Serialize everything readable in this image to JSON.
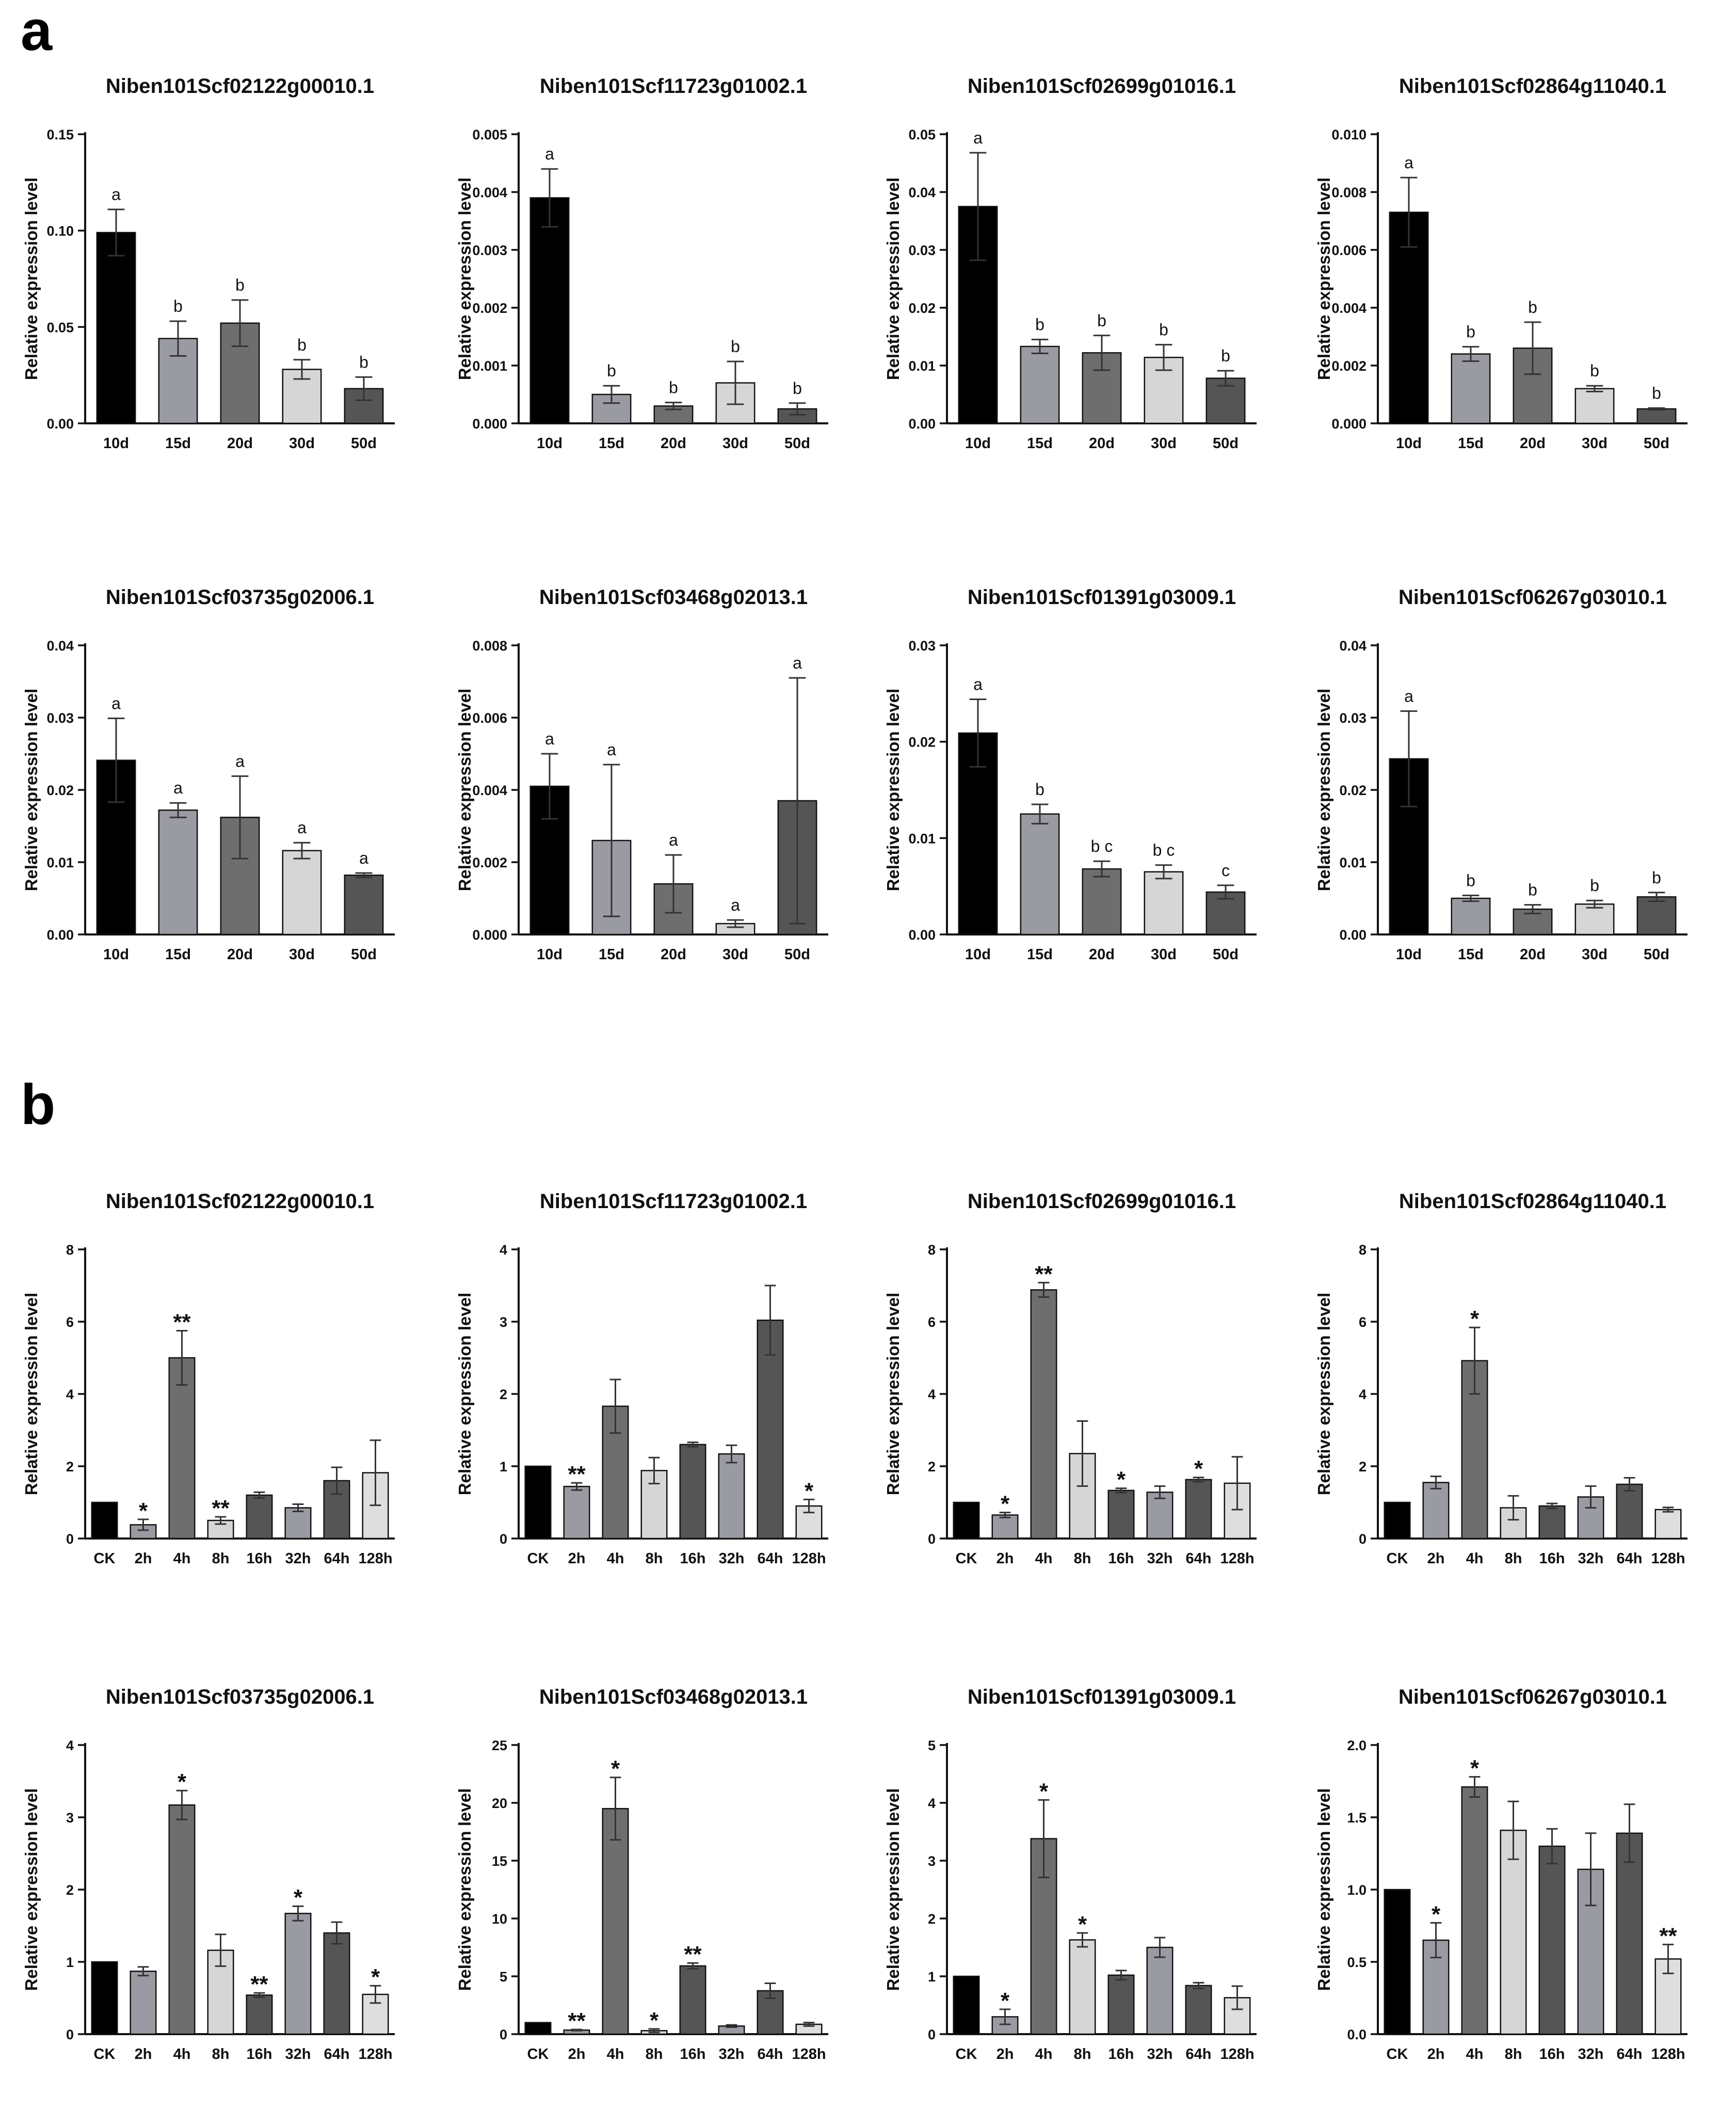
{
  "panels": [
    {
      "label": "a"
    },
    {
      "label": "b"
    }
  ],
  "chart_data": [
    {
      "type": "bar",
      "panel": "a",
      "title": "Niben101Scf02122g00010.1",
      "ylabel": "Relative expression level",
      "ylim": [
        0,
        0.15
      ],
      "yticks": [
        "0.00",
        "0.05",
        "0.10",
        "0.15"
      ],
      "categories": [
        "10d",
        "15d",
        "20d",
        "30d",
        "50d"
      ],
      "values": [
        0.099,
        0.044,
        0.052,
        0.028,
        0.018
      ],
      "errors": [
        0.012,
        0.009,
        0.012,
        0.005,
        0.006
      ],
      "annotations": [
        "a",
        "b",
        "b",
        "b",
        "b"
      ],
      "colors": [
        "#000000",
        "#9a9aa2",
        "#6e6e6e",
        "#d6d6d6",
        "#555555"
      ]
    },
    {
      "type": "bar",
      "panel": "a",
      "title": "Niben101Scf11723g01002.1",
      "ylabel": "Relative expression level",
      "ylim": [
        0,
        0.005
      ],
      "yticks": [
        "0.000",
        "0.001",
        "0.002",
        "0.003",
        "0.004",
        "0.005"
      ],
      "categories": [
        "10d",
        "15d",
        "20d",
        "30d",
        "50d"
      ],
      "values": [
        0.0039,
        0.0005,
        0.0003,
        0.0007,
        0.00025
      ],
      "errors": [
        0.0005,
        0.00015,
        6e-05,
        0.00037,
        0.0001
      ],
      "annotations": [
        "a",
        "b",
        "b",
        "b",
        "b"
      ],
      "colors": [
        "#000000",
        "#9a9aa2",
        "#6e6e6e",
        "#d6d6d6",
        "#555555"
      ]
    },
    {
      "type": "bar",
      "panel": "a",
      "title": "Niben101Scf02699g01016.1",
      "ylabel": "Relative expression level",
      "ylim": [
        0,
        0.05
      ],
      "yticks": [
        "0.00",
        "0.01",
        "0.02",
        "0.03",
        "0.04",
        "0.05"
      ],
      "categories": [
        "10d",
        "15d",
        "20d",
        "30d",
        "50d"
      ],
      "values": [
        0.0375,
        0.0133,
        0.0122,
        0.0114,
        0.0078
      ],
      "errors": [
        0.0093,
        0.0012,
        0.003,
        0.0022,
        0.0013
      ],
      "annotations": [
        "a",
        "b",
        "b",
        "b",
        "b"
      ],
      "colors": [
        "#000000",
        "#9a9aa2",
        "#6e6e6e",
        "#d6d6d6",
        "#555555"
      ]
    },
    {
      "type": "bar",
      "panel": "a",
      "title": "Niben101Scf02864g11040.1",
      "ylabel": "Relative expression level",
      "ylim": [
        0,
        0.01
      ],
      "yticks": [
        "0.000",
        "0.002",
        "0.004",
        "0.006",
        "0.008",
        "0.010"
      ],
      "categories": [
        "10d",
        "15d",
        "20d",
        "30d",
        "50d"
      ],
      "values": [
        0.0073,
        0.0024,
        0.0026,
        0.0012,
        0.0005
      ],
      "errors": [
        0.0012,
        0.00025,
        0.0009,
        0.0001,
        3e-05
      ],
      "annotations": [
        "a",
        "b",
        "b",
        "b",
        "b"
      ],
      "colors": [
        "#000000",
        "#9a9aa2",
        "#6e6e6e",
        "#d6d6d6",
        "#555555"
      ]
    },
    {
      "type": "bar",
      "panel": "a",
      "title": "Niben101Scf03735g02006.1",
      "ylabel": "Relative expression level",
      "ylim": [
        0,
        0.04
      ],
      "yticks": [
        "0.00",
        "0.01",
        "0.02",
        "0.03",
        "0.04"
      ],
      "categories": [
        "10d",
        "15d",
        "20d",
        "30d",
        "50d"
      ],
      "values": [
        0.0241,
        0.0172,
        0.0162,
        0.0116,
        0.0082
      ],
      "errors": [
        0.0058,
        0.001,
        0.0057,
        0.0011,
        0.0003
      ],
      "annotations": [
        "a",
        "a",
        "a",
        "a",
        "a"
      ],
      "colors": [
        "#000000",
        "#9a9aa2",
        "#6e6e6e",
        "#d6d6d6",
        "#555555"
      ]
    },
    {
      "type": "bar",
      "panel": "a",
      "title": "Niben101Scf03468g02013.1",
      "ylabel": "Relative expression level",
      "ylim": [
        0,
        0.008
      ],
      "yticks": [
        "0.000",
        "0.002",
        "0.004",
        "0.006",
        "0.008"
      ],
      "categories": [
        "10d",
        "15d",
        "20d",
        "30d",
        "50d"
      ],
      "values": [
        0.0041,
        0.0026,
        0.0014,
        0.0003,
        0.0037
      ],
      "errors": [
        0.0009,
        0.0021,
        0.0008,
        0.0001,
        0.0034
      ],
      "annotations": [
        "a",
        "a",
        "a",
        "a",
        "a"
      ],
      "colors": [
        "#000000",
        "#9a9aa2",
        "#6e6e6e",
        "#d6d6d6",
        "#555555"
      ]
    },
    {
      "type": "bar",
      "panel": "a",
      "title": "Niben101Scf01391g03009.1",
      "ylabel": "Relative expression level",
      "ylim": [
        0,
        0.03
      ],
      "yticks": [
        "0.00",
        "0.01",
        "0.02",
        "0.03"
      ],
      "categories": [
        "10d",
        "15d",
        "20d",
        "30d",
        "50d"
      ],
      "values": [
        0.0209,
        0.0125,
        0.0068,
        0.0065,
        0.0044
      ],
      "errors": [
        0.0035,
        0.001,
        0.0008,
        0.0007,
        0.0007
      ],
      "annotations": [
        "a",
        "b",
        "b c",
        "b c",
        "c"
      ],
      "colors": [
        "#000000",
        "#9a9aa2",
        "#6e6e6e",
        "#d6d6d6",
        "#555555"
      ]
    },
    {
      "type": "bar",
      "panel": "a",
      "title": "Niben101Scf06267g03010.1",
      "ylabel": "Relative expression level",
      "ylim": [
        0,
        0.04
      ],
      "yticks": [
        "0.00",
        "0.01",
        "0.02",
        "0.03",
        "0.04"
      ],
      "categories": [
        "10d",
        "15d",
        "20d",
        "30d",
        "50d"
      ],
      "values": [
        0.0243,
        0.005,
        0.0035,
        0.0042,
        0.0052
      ],
      "errors": [
        0.0066,
        0.0004,
        0.0006,
        0.0005,
        0.0006
      ],
      "annotations": [
        "a",
        "b",
        "b",
        "b",
        "b"
      ],
      "colors": [
        "#000000",
        "#9a9aa2",
        "#6e6e6e",
        "#d6d6d6",
        "#555555"
      ]
    },
    {
      "type": "bar",
      "panel": "b",
      "title": "Niben101Scf02122g00010.1",
      "ylabel": "Relative expression level",
      "ylim": [
        0,
        8
      ],
      "yticks": [
        "0",
        "2",
        "4",
        "6",
        "8"
      ],
      "categories": [
        "CK",
        "2h",
        "4h",
        "8h",
        "16h",
        "32h",
        "64h",
        "128h"
      ],
      "values": [
        1.0,
        0.38,
        5.0,
        0.5,
        1.2,
        0.85,
        1.6,
        1.82
      ],
      "errors": [
        0,
        0.15,
        0.75,
        0.1,
        0.08,
        0.1,
        0.37,
        0.9
      ],
      "annotations": [
        "",
        "*",
        "**",
        "**",
        "",
        "",
        "",
        ""
      ],
      "colors": [
        "#000000",
        "#9a9aa2",
        "#6e6e6e",
        "#d6d6d6",
        "#555555",
        "#9a9aa2",
        "#555555",
        "#dedede"
      ]
    },
    {
      "type": "bar",
      "panel": "b",
      "title": "Niben101Scf11723g01002.1",
      "ylabel": "Relative expression level",
      "ylim": [
        0,
        4
      ],
      "yticks": [
        "0",
        "1",
        "2",
        "3",
        "4"
      ],
      "categories": [
        "CK",
        "2h",
        "4h",
        "8h",
        "16h",
        "32h",
        "64h",
        "128h"
      ],
      "values": [
        1.0,
        0.72,
        1.83,
        0.94,
        1.3,
        1.17,
        3.02,
        0.45
      ],
      "errors": [
        0,
        0.05,
        0.37,
        0.18,
        0.03,
        0.12,
        0.48,
        0.09
      ],
      "annotations": [
        "",
        "**",
        "",
        "",
        "",
        "",
        "",
        "*"
      ],
      "colors": [
        "#000000",
        "#9a9aa2",
        "#6e6e6e",
        "#d6d6d6",
        "#555555",
        "#9a9aa2",
        "#555555",
        "#dedede"
      ]
    },
    {
      "type": "bar",
      "panel": "b",
      "title": "Niben101Scf02699g01016.1",
      "ylabel": "Relative expression level",
      "ylim": [
        0,
        8
      ],
      "yticks": [
        "0",
        "2",
        "4",
        "6",
        "8"
      ],
      "categories": [
        "CK",
        "2h",
        "4h",
        "8h",
        "16h",
        "32h",
        "64h",
        "128h"
      ],
      "values": [
        1.0,
        0.65,
        6.88,
        2.35,
        1.33,
        1.28,
        1.63,
        1.53
      ],
      "errors": [
        0,
        0.07,
        0.2,
        0.9,
        0.06,
        0.17,
        0.06,
        0.73
      ],
      "annotations": [
        "",
        "*",
        "**",
        "",
        "*",
        "",
        "*",
        ""
      ],
      "colors": [
        "#000000",
        "#9a9aa2",
        "#6e6e6e",
        "#d6d6d6",
        "#555555",
        "#9a9aa2",
        "#555555",
        "#dedede"
      ]
    },
    {
      "type": "bar",
      "panel": "b",
      "title": "Niben101Scf02864g11040.1",
      "ylabel": "Relative expression level",
      "ylim": [
        0,
        8
      ],
      "yticks": [
        "0",
        "2",
        "4",
        "6",
        "8"
      ],
      "categories": [
        "CK",
        "2h",
        "4h",
        "8h",
        "16h",
        "32h",
        "64h",
        "128h"
      ],
      "values": [
        1.0,
        1.55,
        4.92,
        0.85,
        0.9,
        1.15,
        1.5,
        0.8
      ],
      "errors": [
        0,
        0.17,
        0.92,
        0.33,
        0.07,
        0.3,
        0.18,
        0.06
      ],
      "annotations": [
        "",
        "",
        "*",
        "",
        "",
        "",
        "",
        ""
      ],
      "colors": [
        "#000000",
        "#9a9aa2",
        "#6e6e6e",
        "#d6d6d6",
        "#555555",
        "#9a9aa2",
        "#555555",
        "#dedede"
      ]
    },
    {
      "type": "bar",
      "panel": "b",
      "title": "Niben101Scf03735g02006.1",
      "ylabel": "Relative expression level",
      "ylim": [
        0,
        4
      ],
      "yticks": [
        "0",
        "1",
        "2",
        "3",
        "4"
      ],
      "categories": [
        "CK",
        "2h",
        "4h",
        "8h",
        "16h",
        "32h",
        "64h",
        "128h"
      ],
      "values": [
        1.0,
        0.87,
        3.17,
        1.16,
        0.54,
        1.67,
        1.4,
        0.55
      ],
      "errors": [
        0,
        0.06,
        0.2,
        0.22,
        0.03,
        0.1,
        0.15,
        0.12
      ],
      "annotations": [
        "",
        "",
        "*",
        "",
        "**",
        "*",
        "",
        "*"
      ],
      "colors": [
        "#000000",
        "#9a9aa2",
        "#6e6e6e",
        "#d6d6d6",
        "#555555",
        "#9a9aa2",
        "#555555",
        "#dedede"
      ]
    },
    {
      "type": "bar",
      "panel": "b",
      "title": "Niben101Scf03468g02013.1",
      "ylabel": "Relative expression level",
      "ylim": [
        0,
        25
      ],
      "yticks": [
        "0",
        "5",
        "10",
        "15",
        "20",
        "25"
      ],
      "categories": [
        "CK",
        "2h",
        "4h",
        "8h",
        "16h",
        "32h",
        "64h",
        "128h"
      ],
      "values": [
        1.0,
        0.35,
        19.5,
        0.3,
        5.9,
        0.7,
        3.75,
        0.85
      ],
      "errors": [
        0,
        0.05,
        2.7,
        0.15,
        0.25,
        0.1,
        0.65,
        0.15
      ],
      "annotations": [
        "",
        "**",
        "*",
        "*",
        "**",
        "",
        "",
        ""
      ],
      "colors": [
        "#000000",
        "#9a9aa2",
        "#6e6e6e",
        "#d6d6d6",
        "#555555",
        "#9a9aa2",
        "#555555",
        "#dedede"
      ]
    },
    {
      "type": "bar",
      "panel": "b",
      "title": "Niben101Scf01391g03009.1",
      "ylabel": "Relative expression level",
      "ylim": [
        0,
        5
      ],
      "yticks": [
        "0",
        "1",
        "2",
        "3",
        "4",
        "5"
      ],
      "categories": [
        "CK",
        "2h",
        "4h",
        "8h",
        "16h",
        "32h",
        "64h",
        "128h"
      ],
      "values": [
        1.0,
        0.3,
        3.38,
        1.63,
        1.02,
        1.5,
        0.84,
        0.63
      ],
      "errors": [
        0,
        0.13,
        0.67,
        0.12,
        0.08,
        0.17,
        0.05,
        0.2
      ],
      "annotations": [
        "",
        "*",
        "*",
        "*",
        "",
        "",
        "",
        ""
      ],
      "colors": [
        "#000000",
        "#9a9aa2",
        "#6e6e6e",
        "#d6d6d6",
        "#555555",
        "#9a9aa2",
        "#555555",
        "#dedede"
      ]
    },
    {
      "type": "bar",
      "panel": "b",
      "title": "Niben101Scf06267g03010.1",
      "ylabel": "Relative expression level",
      "ylim": [
        0,
        2
      ],
      "yticks": [
        "0.0",
        "0.5",
        "1.0",
        "1.5",
        "2.0"
      ],
      "categories": [
        "CK",
        "2h",
        "4h",
        "8h",
        "16h",
        "32h",
        "64h",
        "128h"
      ],
      "values": [
        1.0,
        0.65,
        1.71,
        1.41,
        1.3,
        1.14,
        1.39,
        0.52
      ],
      "errors": [
        0,
        0.12,
        0.07,
        0.2,
        0.12,
        0.25,
        0.2,
        0.1
      ],
      "annotations": [
        "",
        "*",
        "*",
        "",
        "",
        "",
        "",
        "**"
      ],
      "colors": [
        "#000000",
        "#9a9aa2",
        "#6e6e6e",
        "#d6d6d6",
        "#555555",
        "#9a9aa2",
        "#555555",
        "#dedede"
      ]
    }
  ]
}
